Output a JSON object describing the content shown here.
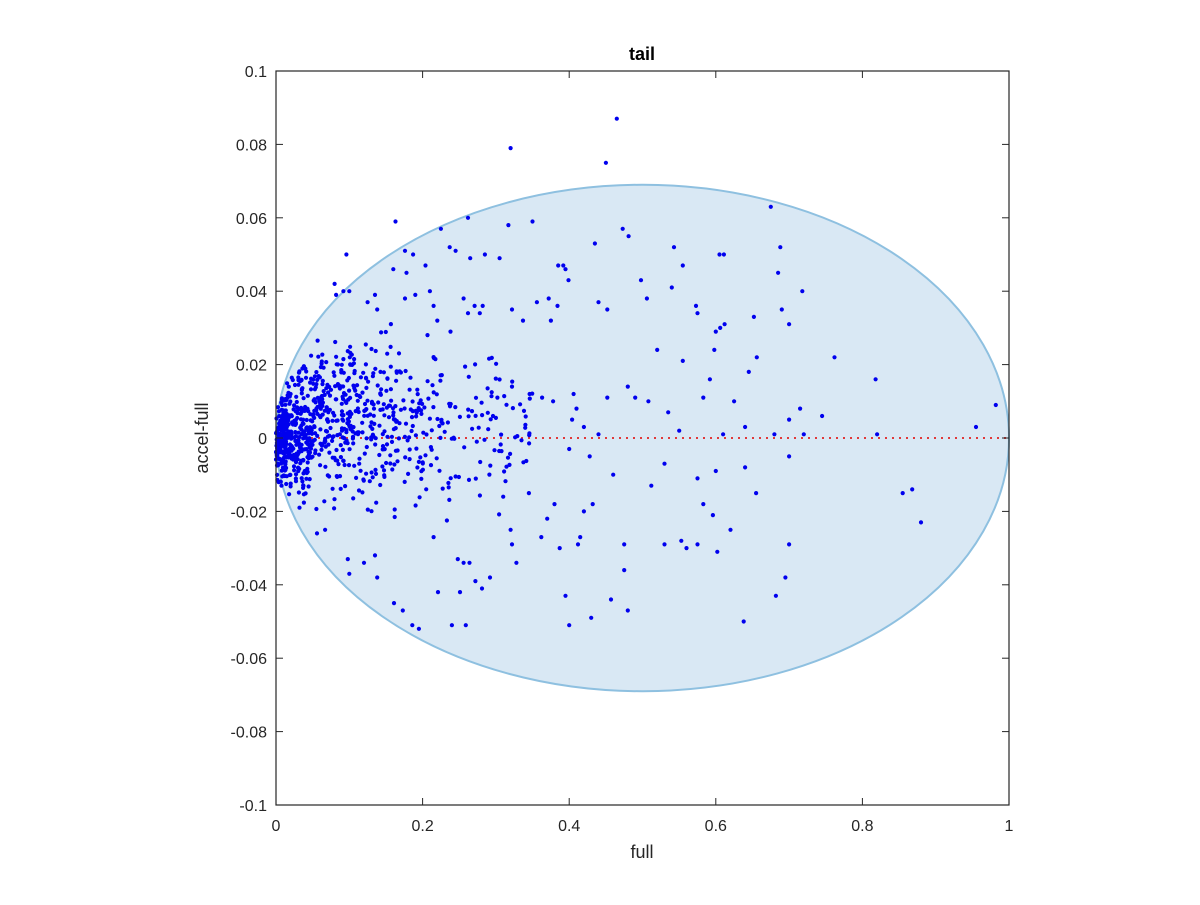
{
  "chart_data": {
    "type": "scatter",
    "title": "tail",
    "xlabel": "full",
    "ylabel": "accel-full",
    "xlim": [
      0,
      1
    ],
    "ylim": [
      -0.1,
      0.1
    ],
    "grid": false,
    "box": true,
    "x_ticks": [
      {
        "value": 0,
        "label": "0"
      },
      {
        "value": 0.2,
        "label": "0.2"
      },
      {
        "value": 0.4,
        "label": "0.4"
      },
      {
        "value": 0.6,
        "label": "0.6"
      },
      {
        "value": 0.8,
        "label": "0.8"
      },
      {
        "value": 1,
        "label": "1"
      }
    ],
    "y_ticks": [
      {
        "value": 0.1,
        "label": "0.1"
      },
      {
        "value": 0.08,
        "label": "0.08"
      },
      {
        "value": 0.06,
        "label": "0.06"
      },
      {
        "value": 0.04,
        "label": "0.04"
      },
      {
        "value": 0.02,
        "label": "0.02"
      },
      {
        "value": 0,
        "label": "0"
      },
      {
        "value": -0.02,
        "label": "-0.02"
      },
      {
        "value": -0.04,
        "label": "-0.04"
      },
      {
        "value": -0.06,
        "label": "-0.06"
      },
      {
        "value": -0.08,
        "label": "-0.08"
      },
      {
        "value": -0.1,
        "label": "-0.1"
      }
    ],
    "region": {
      "shape": "ellipse",
      "center_x": 0.5,
      "center_y": 0,
      "semi_axis_x": 0.5,
      "semi_axis_y": 0.069,
      "fill_color": "#d9e8f4",
      "edge_color": "#8ec0e0"
    },
    "reference_line": {
      "y": 0,
      "x_range": [
        0,
        1
      ],
      "style": "dotted",
      "color": "#e0393a"
    },
    "points_color": "#0000ee",
    "points": [
      [
        0.465,
        0.087
      ],
      [
        0.32,
        0.079
      ],
      [
        0.45,
        0.075
      ],
      [
        0.675,
        0.063
      ],
      [
        0.163,
        0.059
      ],
      [
        0.262,
        0.06
      ],
      [
        0.35,
        0.059
      ],
      [
        0.317,
        0.058
      ],
      [
        0.096,
        0.05
      ],
      [
        0.225,
        0.057
      ],
      [
        0.237,
        0.052
      ],
      [
        0.245,
        0.051
      ],
      [
        0.285,
        0.05
      ],
      [
        0.305,
        0.049
      ],
      [
        0.473,
        0.057
      ],
      [
        0.481,
        0.055
      ],
      [
        0.605,
        0.05
      ],
      [
        0.611,
        0.05
      ],
      [
        0.688,
        0.052
      ],
      [
        0.685,
        0.045
      ],
      [
        0.543,
        0.052
      ],
      [
        0.555,
        0.047
      ],
      [
        0.435,
        0.053
      ],
      [
        0.385,
        0.047
      ],
      [
        0.392,
        0.047
      ],
      [
        0.395,
        0.046
      ],
      [
        0.265,
        0.049
      ],
      [
        0.176,
        0.051
      ],
      [
        0.187,
        0.05
      ],
      [
        0.204,
        0.047
      ],
      [
        0.178,
        0.045
      ],
      [
        0.16,
        0.046
      ],
      [
        0.08,
        0.042
      ],
      [
        0.082,
        0.039
      ],
      [
        0.092,
        0.04
      ],
      [
        0.1,
        0.04
      ],
      [
        0.125,
        0.037
      ],
      [
        0.135,
        0.039
      ],
      [
        0.138,
        0.035
      ],
      [
        0.176,
        0.038
      ],
      [
        0.19,
        0.039
      ],
      [
        0.21,
        0.04
      ],
      [
        0.215,
        0.036
      ],
      [
        0.22,
        0.032
      ],
      [
        0.238,
        0.029
      ],
      [
        0.256,
        0.038
      ],
      [
        0.262,
        0.034
      ],
      [
        0.271,
        0.036
      ],
      [
        0.278,
        0.034
      ],
      [
        0.282,
        0.036
      ],
      [
        0.322,
        0.035
      ],
      [
        0.337,
        0.032
      ],
      [
        0.356,
        0.037
      ],
      [
        0.372,
        0.038
      ],
      [
        0.375,
        0.032
      ],
      [
        0.384,
        0.036
      ],
      [
        0.399,
        0.043
      ],
      [
        0.44,
        0.037
      ],
      [
        0.452,
        0.035
      ],
      [
        0.498,
        0.043
      ],
      [
        0.506,
        0.038
      ],
      [
        0.54,
        0.041
      ],
      [
        0.573,
        0.036
      ],
      [
        0.575,
        0.034
      ],
      [
        0.69,
        0.035
      ],
      [
        0.7,
        0.031
      ],
      [
        0.718,
        0.04
      ],
      [
        0.6,
        0.029
      ],
      [
        0.606,
        0.03
      ],
      [
        0.612,
        0.031
      ],
      [
        0.652,
        0.033
      ],
      [
        0.555,
        0.021
      ],
      [
        0.598,
        0.024
      ],
      [
        0.52,
        0.024
      ],
      [
        0.656,
        0.022
      ],
      [
        0.762,
        0.022
      ],
      [
        0.818,
        0.016
      ],
      [
        0.645,
        0.018
      ],
      [
        0.592,
        0.016
      ],
      [
        0.583,
        0.011
      ],
      [
        0.625,
        0.01
      ],
      [
        0.715,
        0.008
      ],
      [
        0.745,
        0.006
      ],
      [
        0.7,
        0.005
      ],
      [
        0.535,
        0.007
      ],
      [
        0.49,
        0.011
      ],
      [
        0.508,
        0.01
      ],
      [
        0.452,
        0.011
      ],
      [
        0.406,
        0.012
      ],
      [
        0.41,
        0.008
      ],
      [
        0.404,
        0.005
      ],
      [
        0.378,
        0.01
      ],
      [
        0.363,
        0.011
      ],
      [
        0.346,
        0.012
      ],
      [
        0.322,
        0.014
      ],
      [
        0.302,
        0.011
      ],
      [
        0.296,
        0.006
      ],
      [
        0.48,
        0.014
      ],
      [
        0.42,
        0.003
      ],
      [
        0.44,
        0.001
      ],
      [
        0.55,
        0.002
      ],
      [
        0.61,
        0.001
      ],
      [
        0.64,
        0.003
      ],
      [
        0.68,
        0.001
      ],
      [
        0.72,
        0.001
      ],
      [
        0.82,
        0.001
      ],
      [
        0.955,
        0.003
      ],
      [
        0.982,
        0.009
      ],
      [
        0.4,
        -0.003
      ],
      [
        0.428,
        -0.005
      ],
      [
        0.46,
        -0.01
      ],
      [
        0.53,
        -0.007
      ],
      [
        0.7,
        -0.005
      ],
      [
        0.855,
        -0.015
      ],
      [
        0.868,
        -0.014
      ],
      [
        0.88,
        -0.023
      ],
      [
        0.7,
        -0.029
      ],
      [
        0.695,
        -0.038
      ],
      [
        0.682,
        -0.043
      ],
      [
        0.602,
        -0.031
      ],
      [
        0.62,
        -0.025
      ],
      [
        0.596,
        -0.021
      ],
      [
        0.583,
        -0.018
      ],
      [
        0.575,
        -0.029
      ],
      [
        0.56,
        -0.03
      ],
      [
        0.553,
        -0.028
      ],
      [
        0.53,
        -0.029
      ],
      [
        0.475,
        -0.036
      ],
      [
        0.475,
        -0.029
      ],
      [
        0.457,
        -0.044
      ],
      [
        0.48,
        -0.047
      ],
      [
        0.43,
        -0.049
      ],
      [
        0.395,
        -0.043
      ],
      [
        0.4,
        -0.051
      ],
      [
        0.412,
        -0.029
      ],
      [
        0.415,
        -0.027
      ],
      [
        0.387,
        -0.03
      ],
      [
        0.362,
        -0.027
      ],
      [
        0.328,
        -0.034
      ],
      [
        0.322,
        -0.029
      ],
      [
        0.32,
        -0.025
      ],
      [
        0.31,
        -0.016
      ],
      [
        0.292,
        -0.038
      ],
      [
        0.281,
        -0.041
      ],
      [
        0.272,
        -0.039
      ],
      [
        0.264,
        -0.034
      ],
      [
        0.256,
        -0.034
      ],
      [
        0.251,
        -0.042
      ],
      [
        0.248,
        -0.033
      ],
      [
        0.221,
        -0.042
      ],
      [
        0.215,
        -0.027
      ],
      [
        0.24,
        -0.051
      ],
      [
        0.259,
        -0.051
      ],
      [
        0.195,
        -0.052
      ],
      [
        0.186,
        -0.051
      ],
      [
        0.173,
        -0.047
      ],
      [
        0.161,
        -0.045
      ],
      [
        0.135,
        -0.032
      ],
      [
        0.138,
        -0.038
      ],
      [
        0.12,
        -0.034
      ],
      [
        0.1,
        -0.037
      ],
      [
        0.098,
        -0.033
      ],
      [
        0.067,
        -0.025
      ],
      [
        0.056,
        -0.026
      ],
      [
        0.032,
        -0.019
      ],
      [
        0.42,
        -0.02
      ],
      [
        0.432,
        -0.018
      ],
      [
        0.38,
        -0.018
      ],
      [
        0.37,
        -0.022
      ],
      [
        0.345,
        -0.015
      ],
      [
        0.638,
        -0.05
      ],
      [
        0.6,
        -0.009
      ],
      [
        0.575,
        -0.011
      ],
      [
        0.512,
        -0.013
      ],
      [
        0.655,
        -0.015
      ],
      [
        0.64,
        -0.008
      ]
    ],
    "cluster": [
      {
        "x_range": [
          0.0,
          0.015
        ],
        "y_range": [
          -0.016,
          0.016
        ],
        "count": 180
      },
      {
        "x_range": [
          0.015,
          0.05
        ],
        "y_range": [
          -0.022,
          0.024
        ],
        "count": 220
      },
      {
        "x_range": [
          0.05,
          0.1
        ],
        "y_range": [
          -0.024,
          0.034
        ],
        "count": 180
      },
      {
        "x_range": [
          0.1,
          0.16
        ],
        "y_range": [
          -0.026,
          0.036
        ],
        "count": 150
      },
      {
        "x_range": [
          0.16,
          0.24
        ],
        "y_range": [
          -0.028,
          0.036
        ],
        "count": 110
      },
      {
        "x_range": [
          0.24,
          0.35
        ],
        "y_range": [
          -0.028,
          0.032
        ],
        "count": 70
      }
    ]
  }
}
